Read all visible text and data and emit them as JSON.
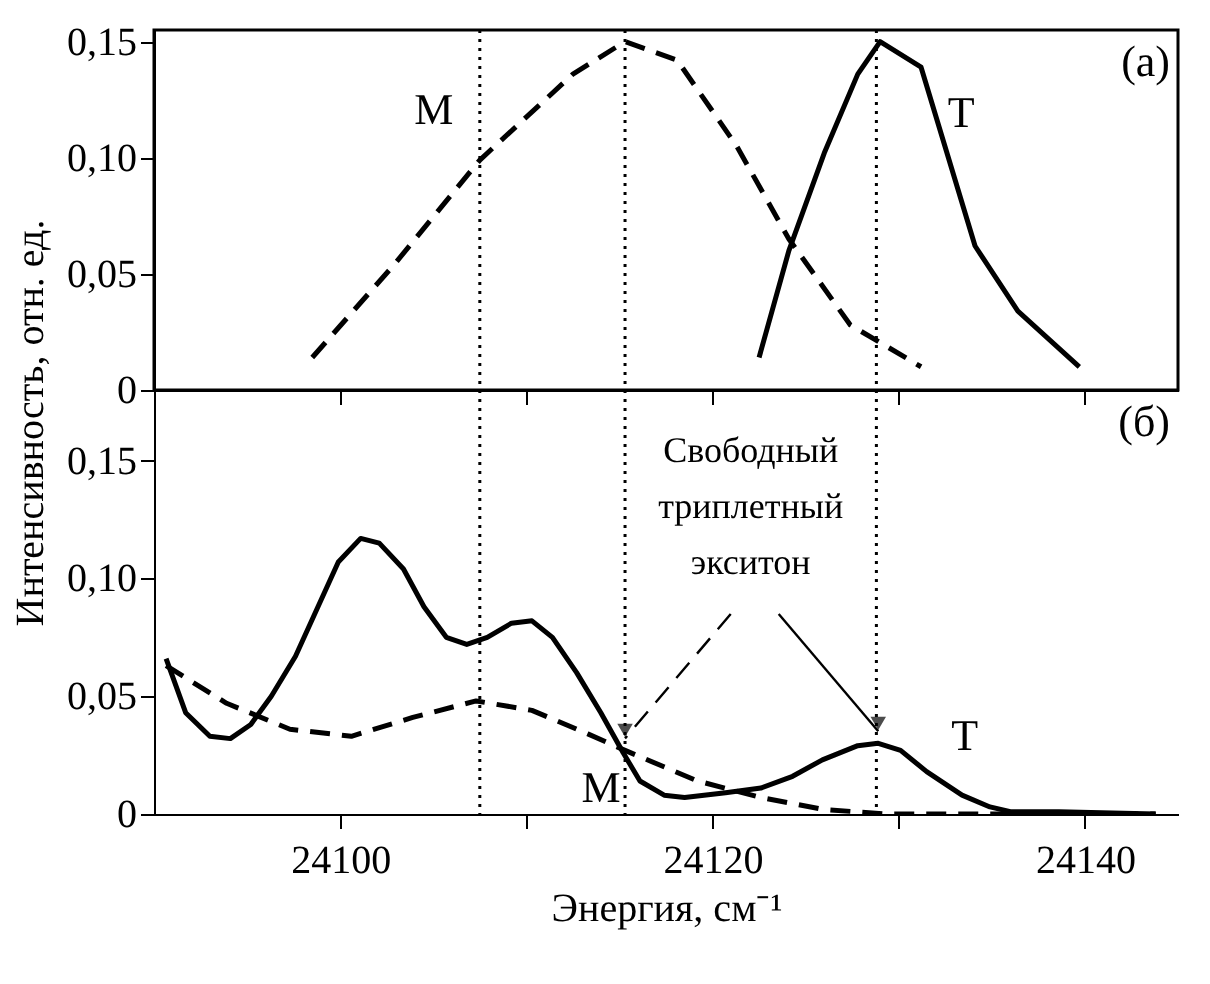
{
  "chart_data": [
    {
      "type": "line",
      "xlim": [
        24090,
        24145
      ],
      "ylim": [
        0,
        0.155
      ],
      "xticks": [
        24100,
        24110,
        24120,
        24130,
        24140
      ],
      "yticks": [
        0,
        {
          "value": 0.05,
          "label": "0,05"
        },
        {
          "value": 0.1,
          "label": "0,10"
        },
        {
          "value": 0.15,
          "label": "0,15"
        }
      ],
      "tick_labels": "y",
      "grid": false,
      "legend": false,
      "series": [
        {
          "name": "М",
          "color": "#000000",
          "line_style": "dashed",
          "x": [
            24098.5,
            24102.9,
            24107.5,
            24112.5,
            24115.3,
            24118.1,
            24121.3,
            24124.1,
            24127.4,
            24131.2
          ],
          "values": [
            0.014,
            0.054,
            0.099,
            0.136,
            0.15,
            0.142,
            0.105,
            0.065,
            0.028,
            0.01
          ]
        },
        {
          "name": "Т",
          "color": "#000000",
          "line_style": "solid",
          "x": [
            24122.5,
            24124.1,
            24126.0,
            24127.8,
            24129.0,
            24131.2,
            24134.1,
            24136.4,
            24139.7
          ],
          "values": [
            0.014,
            0.06,
            0.102,
            0.136,
            0.15,
            0.139,
            0.062,
            0.034,
            0.01
          ]
        }
      ],
      "ref_lines": [
        {
          "axis": "x",
          "value": 24107.5,
          "color": "#000000",
          "line_style": "dotted"
        },
        {
          "axis": "x",
          "value": 24115.3,
          "color": "#000000",
          "line_style": "dotted"
        },
        {
          "axis": "x",
          "value": 24128.8,
          "color": "#000000",
          "line_style": "dotted"
        }
      ],
      "annotations": [
        "(а)"
      ]
    },
    {
      "type": "line",
      "xlim": [
        24090,
        24145
      ],
      "ylim": [
        0,
        0.18
      ],
      "xticks": [
        24100,
        {
          "value": 24110,
          "label": null
        },
        24120,
        {
          "value": 24130,
          "label": null
        },
        24140
      ],
      "yticks": [
        0,
        {
          "value": 0.05,
          "label": "0,05"
        },
        {
          "value": 0.1,
          "label": "0,10"
        },
        {
          "value": 0.15,
          "label": "0,15"
        }
      ],
      "xlabel": "Энергия, см⁻¹",
      "ylabel": "Интенсивность, отн. ед.",
      "grid": false,
      "series": [
        {
          "name": "Т",
          "color": "#000000",
          "line_style": "solid",
          "x": [
            24090.65,
            24091.7,
            24093.0,
            24094.1,
            24095.2,
            24096.3,
            24097.6,
            24099.9,
            24101.1,
            24102.1,
            24103.4,
            24104.5,
            24105.7,
            24106.8,
            24107.9,
            24109.2,
            24110.3,
            24111.4,
            24112.7,
            24114.0,
            24115.2,
            24116.1,
            24117.4,
            24118.5,
            24120.7,
            24122.6,
            24124.3,
            24125.9,
            24127.8,
            24128.9,
            24130.1,
            24131.5,
            24133.4,
            24134.9,
            24136.0,
            24138.6,
            24143.8
          ],
          "values": [
            0.066,
            0.043,
            0.033,
            0.032,
            0.038,
            0.05,
            0.067,
            0.107,
            0.117,
            0.115,
            0.104,
            0.088,
            0.075,
            0.072,
            0.075,
            0.081,
            0.082,
            0.075,
            0.06,
            0.043,
            0.026,
            0.014,
            0.008,
            0.007,
            0.009,
            0.011,
            0.016,
            0.023,
            0.029,
            0.03,
            0.027,
            0.018,
            0.008,
            0.003,
            0.001,
            0.001,
            0
          ]
        },
        {
          "name": "М",
          "color": "#000000",
          "line_style": "dashed",
          "x": [
            24090.65,
            24093.9,
            24097.3,
            24100.6,
            24103.9,
            24107.3,
            24110.3,
            24113.3,
            24115.3,
            24119.2,
            24122.6,
            24125.9,
            24129.3,
            24143.8
          ],
          "values": [
            0.063,
            0.047,
            0.036,
            0.033,
            0.041,
            0.048,
            0.044,
            0.034,
            0.027,
            0.014,
            0.007,
            0.002,
            0,
            0
          ]
        }
      ],
      "ref_lines": [
        {
          "axis": "x",
          "value": 24107.5,
          "color": "#000000",
          "line_style": "dotted"
        },
        {
          "axis": "x",
          "value": 24115.3,
          "color": "#000000",
          "line_style": "dotted"
        },
        {
          "axis": "x",
          "value": 24128.8,
          "color": "#000000",
          "line_style": "dotted"
        }
      ],
      "annotations": [
        "(б)",
        {
          "text": "Свободный\nтриплетный\nэкситон",
          "x": 24115.3,
          "y": 0.027
        }
      ]
    }
  ]
}
